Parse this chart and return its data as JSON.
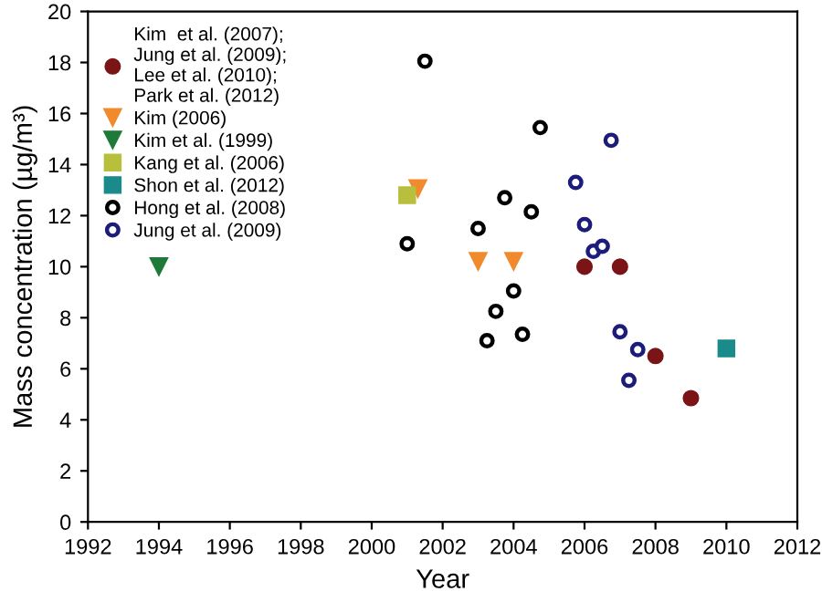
{
  "chart_data": {
    "type": "scatter",
    "xlabel": "Year",
    "ylabel": "Mass concentration (µg/m³)",
    "xlim": [
      1992,
      2012
    ],
    "xticks": [
      1992,
      1994,
      1996,
      1998,
      2000,
      2002,
      2004,
      2006,
      2008,
      2010,
      2012
    ],
    "ylim": [
      0,
      20
    ],
    "yticks": [
      0,
      2,
      4,
      6,
      8,
      10,
      12,
      14,
      16,
      18,
      20
    ],
    "grid": false,
    "legend": "top left",
    "series": [
      {
        "name": "Kim  et al. (2007);\nJung et al. (2009);\nLee et al. (2010);\nPark et al. (2012)",
        "color": "#7b1416",
        "marker": "circle",
        "x": [
          2006,
          2007,
          2008,
          2009
        ],
        "values": [
          10.0,
          10.0,
          6.5,
          4.85
        ]
      },
      {
        "name": "Kim (2006)",
        "color": "#f08a2c",
        "marker": "triangle_down",
        "x": [
          2001.3,
          2003.0,
          2004.0
        ],
        "values": [
          13.05,
          10.2,
          10.2
        ]
      },
      {
        "name": "Kim et al. (1999)",
        "color": "#1f7a3a",
        "marker": "triangle_down",
        "x": [
          1994
        ],
        "values": [
          10.0
        ]
      },
      {
        "name": "Kang et al. (2006)",
        "color": "#b8bf3c",
        "marker": "square",
        "x": [
          2001.0
        ],
        "values": [
          12.8
        ]
      },
      {
        "name": "Shon et al. (2012)",
        "color": "#1a8a8a",
        "marker": "square",
        "x": [
          2010.0
        ],
        "values": [
          6.8
        ]
      },
      {
        "name": "Hong et al. (2008)",
        "color": "#000000",
        "marker": "circle_open",
        "x": [
          2001.5,
          2004.75,
          2003.75,
          2004.5,
          2003.0,
          2001.0,
          2004.0,
          2003.5,
          2003.25,
          2004.25
        ],
        "values": [
          18.05,
          15.45,
          12.7,
          12.15,
          11.5,
          10.9,
          9.05,
          8.25,
          7.1,
          7.35
        ]
      },
      {
        "name": "Jung et al. (2009)",
        "color": "#1c1c7a",
        "marker": "circle_open",
        "x": [
          2006.75,
          2005.75,
          2006.0,
          2006.25,
          2006.5,
          2007.0,
          2007.5,
          2007.25
        ],
        "values": [
          14.95,
          13.3,
          11.65,
          10.6,
          10.8,
          7.45,
          6.75,
          5.55
        ]
      }
    ]
  }
}
